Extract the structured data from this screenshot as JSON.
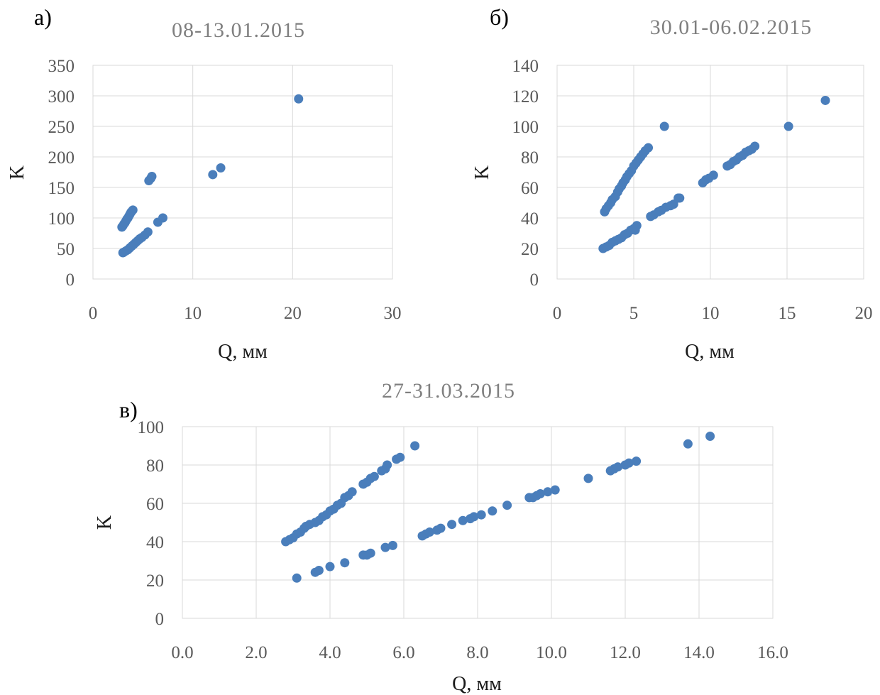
{
  "chart_data": [
    {
      "type": "scatter",
      "panel_label": "а)",
      "title": "08-13.01.2015",
      "xlabel": "Q, мм",
      "ylabel": "K",
      "xlim": [
        0,
        30
      ],
      "ylim": [
        0,
        350
      ],
      "xticks": [
        "0",
        "10",
        "20",
        "30"
      ],
      "yticks": [
        "0",
        "50",
        "100",
        "150",
        "200",
        "250",
        "300",
        "350"
      ],
      "grid": true,
      "marker_color": "#4a7ebb",
      "series": [
        {
          "points": [
            [
              2.9,
              85
            ],
            [
              3.0,
              87
            ],
            [
              3.1,
              90
            ],
            [
              3.2,
              92
            ],
            [
              3.3,
              95
            ],
            [
              3.4,
              98
            ],
            [
              3.5,
              100
            ],
            [
              3.6,
              103
            ],
            [
              3.7,
              106
            ],
            [
              3.8,
              109
            ],
            [
              3.9,
              111
            ],
            [
              4.0,
              113
            ],
            [
              3.0,
              43
            ],
            [
              3.1,
              44
            ],
            [
              3.3,
              46
            ],
            [
              3.5,
              48
            ],
            [
              3.7,
              51
            ],
            [
              3.9,
              54
            ],
            [
              4.1,
              57
            ],
            [
              4.3,
              60
            ],
            [
              4.5,
              63
            ],
            [
              4.7,
              66
            ],
            [
              4.9,
              68
            ],
            [
              5.2,
              72
            ],
            [
              5.5,
              77
            ],
            [
              5.6,
              161
            ],
            [
              5.8,
              165
            ],
            [
              5.9,
              168
            ],
            [
              6.5,
              93
            ],
            [
              7.0,
              100
            ],
            [
              12.0,
              171
            ],
            [
              12.8,
              182
            ],
            [
              20.6,
              295
            ]
          ]
        }
      ]
    },
    {
      "type": "scatter",
      "panel_label": "б)",
      "title": "30.01-06.02.2015",
      "xlabel": "Q, мм",
      "ylabel": "K",
      "xlim": [
        0,
        20
      ],
      "ylim": [
        0,
        140
      ],
      "xticks": [
        "0",
        "5",
        "10",
        "15",
        "20"
      ],
      "yticks": [
        "0",
        "20",
        "40",
        "60",
        "80",
        "100",
        "120",
        "140"
      ],
      "grid": true,
      "marker_color": "#4a7ebb",
      "series": [
        {
          "points": [
            [
              3.1,
              44
            ],
            [
              3.2,
              46
            ],
            [
              3.35,
              48
            ],
            [
              3.5,
              50
            ],
            [
              3.6,
              52
            ],
            [
              3.8,
              54
            ],
            [
              3.95,
              57
            ],
            [
              4.05,
              59
            ],
            [
              4.2,
              61
            ],
            [
              4.3,
              63
            ],
            [
              4.45,
              65
            ],
            [
              4.55,
              67
            ],
            [
              4.7,
              69
            ],
            [
              4.85,
              71
            ],
            [
              5.0,
              74
            ],
            [
              5.15,
              76
            ],
            [
              5.3,
              78
            ],
            [
              5.45,
              80
            ],
            [
              5.6,
              82
            ],
            [
              5.75,
              84
            ],
            [
              5.95,
              86
            ],
            [
              3.0,
              20
            ],
            [
              3.2,
              21
            ],
            [
              3.4,
              22
            ],
            [
              3.6,
              24
            ],
            [
              3.8,
              25
            ],
            [
              4.0,
              26
            ],
            [
              4.2,
              27
            ],
            [
              4.4,
              29
            ],
            [
              4.6,
              30
            ],
            [
              4.8,
              32
            ],
            [
              5.0,
              33
            ],
            [
              5.2,
              35
            ],
            [
              5.1,
              32
            ],
            [
              6.1,
              41
            ],
            [
              6.3,
              42
            ],
            [
              6.6,
              44
            ],
            [
              6.8,
              45
            ],
            [
              7.1,
              47
            ],
            [
              7.4,
              48
            ],
            [
              7.6,
              49
            ],
            [
              7.9,
              53
            ],
            [
              8.0,
              53
            ],
            [
              7.0,
              100
            ],
            [
              9.5,
              63
            ],
            [
              9.7,
              65
            ],
            [
              9.9,
              66
            ],
            [
              10.2,
              68
            ],
            [
              11.1,
              74
            ],
            [
              11.3,
              75
            ],
            [
              11.5,
              77
            ],
            [
              11.7,
              78
            ],
            [
              11.9,
              80
            ],
            [
              12.1,
              81
            ],
            [
              12.3,
              83
            ],
            [
              12.5,
              84
            ],
            [
              12.7,
              85
            ],
            [
              12.9,
              87
            ],
            [
              15.1,
              100
            ],
            [
              17.5,
              117
            ]
          ]
        }
      ]
    },
    {
      "type": "scatter",
      "panel_label": "в)",
      "title": "27-31.03.2015",
      "xlabel": "Q, мм",
      "ylabel": "K",
      "xlim": [
        0,
        16
      ],
      "ylim": [
        0,
        100
      ],
      "xticks": [
        "0.0",
        "2.0",
        "4.0",
        "6.0",
        "8.0",
        "10.0",
        "12.0",
        "14.0",
        "16.0"
      ],
      "yticks": [
        "0",
        "20",
        "40",
        "60",
        "80",
        "100"
      ],
      "grid": true,
      "marker_color": "#4a7ebb",
      "series": [
        {
          "points": [
            [
              2.8,
              40
            ],
            [
              2.9,
              41
            ],
            [
              3.0,
              42
            ],
            [
              3.1,
              44
            ],
            [
              3.2,
              45
            ],
            [
              3.3,
              47
            ],
            [
              3.35,
              48
            ],
            [
              3.45,
              49
            ],
            [
              3.6,
              50
            ],
            [
              3.7,
              51
            ],
            [
              3.8,
              53
            ],
            [
              3.9,
              54
            ],
            [
              4.0,
              56
            ],
            [
              4.1,
              57
            ],
            [
              4.2,
              59
            ],
            [
              4.3,
              60
            ],
            [
              4.4,
              63
            ],
            [
              4.5,
              64
            ],
            [
              4.6,
              66
            ],
            [
              4.9,
              70
            ],
            [
              5.0,
              71
            ],
            [
              5.1,
              73
            ],
            [
              5.2,
              74
            ],
            [
              5.4,
              77
            ],
            [
              5.5,
              78
            ],
            [
              5.55,
              80
            ],
            [
              5.8,
              83
            ],
            [
              5.9,
              84
            ],
            [
              6.3,
              90
            ],
            [
              3.1,
              21
            ],
            [
              3.6,
              24
            ],
            [
              3.7,
              25
            ],
            [
              4.0,
              27
            ],
            [
              4.4,
              29
            ],
            [
              4.9,
              33
            ],
            [
              5.0,
              33
            ],
            [
              5.1,
              34
            ],
            [
              5.5,
              37
            ],
            [
              5.7,
              38
            ],
            [
              6.5,
              43
            ],
            [
              6.6,
              44
            ],
            [
              6.7,
              45
            ],
            [
              6.9,
              46
            ],
            [
              7.0,
              47
            ],
            [
              7.3,
              49
            ],
            [
              7.6,
              51
            ],
            [
              7.8,
              52
            ],
            [
              7.9,
              53
            ],
            [
              8.1,
              54
            ],
            [
              8.4,
              56
            ],
            [
              8.8,
              59
            ],
            [
              9.4,
              63
            ],
            [
              9.5,
              63
            ],
            [
              9.6,
              64
            ],
            [
              9.7,
              65
            ],
            [
              9.9,
              66
            ],
            [
              10.1,
              67
            ],
            [
              11.0,
              73
            ],
            [
              11.6,
              77
            ],
            [
              11.7,
              78
            ],
            [
              11.8,
              79
            ],
            [
              12.0,
              80
            ],
            [
              12.1,
              81
            ],
            [
              12.3,
              82
            ],
            [
              13.7,
              91
            ],
            [
              14.3,
              95
            ]
          ]
        }
      ]
    }
  ]
}
